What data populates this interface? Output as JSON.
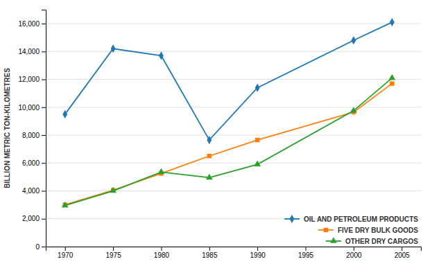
{
  "chart_data": {
    "type": "line",
    "y_label": "BILLION METRIC TON-KILOMETRES",
    "x": [
      1970,
      1975,
      1980,
      1985,
      1990,
      2000,
      2004
    ],
    "series": [
      {
        "name": "OIL AND PETROLEUM PRODUCTS",
        "marker": "diamond",
        "values": [
          9500,
          14200,
          13700,
          7650,
          11400,
          14800,
          16100
        ]
      },
      {
        "name": "FIVE DRY BULK GOODS",
        "marker": "square",
        "values": [
          3000,
          4050,
          5250,
          6500,
          7650,
          9650,
          11700
        ]
      },
      {
        "name": "OTHER DRY CARGOS",
        "marker": "triangle",
        "values": [
          2950,
          4000,
          5350,
          4950,
          5900,
          9750,
          12100
        ]
      }
    ],
    "xlim": [
      1968,
      2007
    ],
    "xticks": [
      1970,
      1975,
      1980,
      1985,
      1990,
      1995,
      2000,
      2005
    ],
    "ylim": [
      0,
      17000
    ],
    "yticks": [
      0,
      {
        "value": 2000,
        "label": "2,000"
      },
      {
        "value": 4000,
        "label": "4,000"
      },
      {
        "value": 6000,
        "label": "6,000"
      },
      {
        "value": 8000,
        "label": "8,000"
      },
      {
        "value": 10000,
        "label": "10,000"
      },
      {
        "value": 12000,
        "label": "12,000"
      },
      {
        "value": 14000,
        "label": "14,000"
      },
      {
        "value": 16000,
        "label": "16,000"
      }
    ],
    "grid": true,
    "legend": "lower right"
  }
}
